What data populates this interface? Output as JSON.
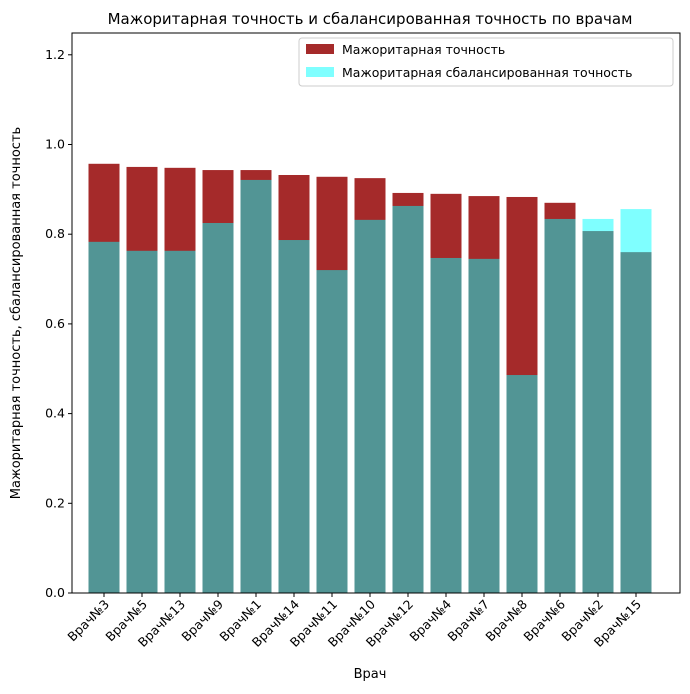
{
  "chart_data": {
    "type": "bar",
    "title": "Мажоритарная точность и сбалансированная точность по врачам",
    "xlabel": "Врач",
    "ylabel": "Мажоритарная точность, сбалансированная точность",
    "ylim": [
      0,
      1.25
    ],
    "yticks": [
      "0.0",
      "0.2",
      "0.4",
      "0.6",
      "0.8",
      "1.0",
      "1.2"
    ],
    "categories": [
      "Врач№3",
      "Врач№5",
      "Врач№13",
      "Врач№9",
      "Врач№1",
      "Врач№14",
      "Врач№11",
      "Врач№10",
      "Врач№12",
      "Врач№4",
      "Врач№7",
      "Врач№8",
      "Врач№6",
      "Врач№2",
      "Врач№15"
    ],
    "series": [
      {
        "name": "Мажоритарная точность",
        "color": "#a52a2a",
        "alpha": 1,
        "values": [
          0.957,
          0.95,
          0.948,
          0.943,
          0.943,
          0.932,
          0.928,
          0.925,
          0.892,
          0.89,
          0.885,
          0.883,
          0.87,
          0.807,
          0.76
        ]
      },
      {
        "name": "Мажоритарная сбалансированная точность",
        "color": "#00ffff",
        "alpha": 0.5,
        "values": [
          0.783,
          0.763,
          0.763,
          0.825,
          0.921,
          0.787,
          0.72,
          0.832,
          0.863,
          0.747,
          0.745,
          0.486,
          0.834,
          0.834,
          0.856
        ]
      }
    ],
    "legend": "top-right"
  }
}
